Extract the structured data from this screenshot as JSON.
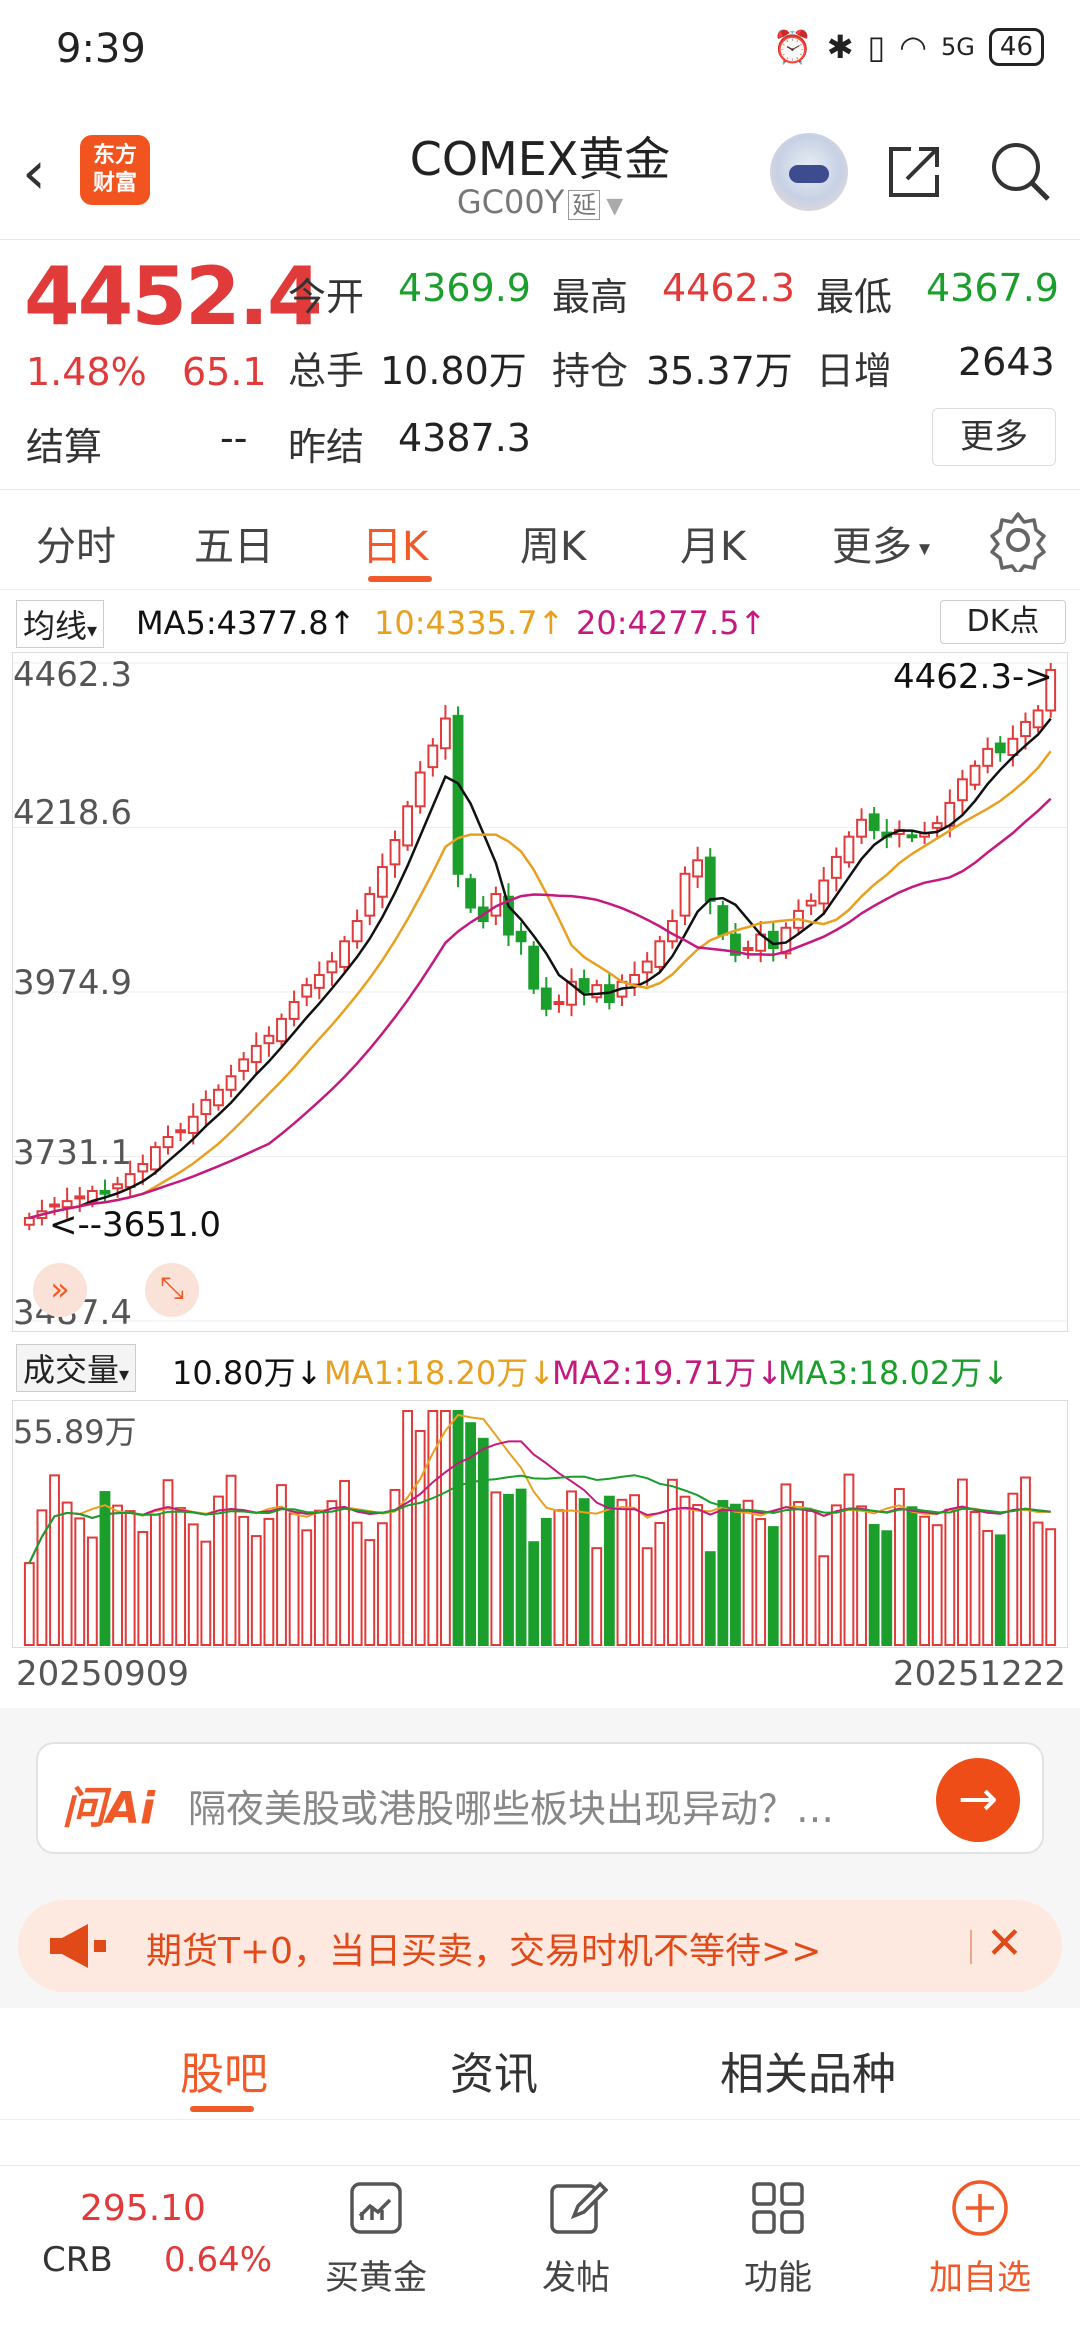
{
  "status_bar": {
    "time": "9:39",
    "signal": "5G",
    "battery": "46"
  },
  "header": {
    "title": "COMEX黄金",
    "code": "GC00Y",
    "tag": "延",
    "logo_text": "东方财富",
    "icons": [
      "back-arrow-icon",
      "logo-icon",
      "robot-assistant-icon",
      "share-icon",
      "search-icon"
    ]
  },
  "quote": {
    "price": "4452.4",
    "change_pct": "1.48%",
    "change": "65.1",
    "open_label": "今开",
    "open": "4369.9",
    "high_label": "最高",
    "high": "4462.3",
    "low_label": "最低",
    "low": "4367.9",
    "volume_label": "总手",
    "volume": "10.80万",
    "oi_label": "持仓",
    "oi": "35.37万",
    "oi_chg_label": "日增",
    "oi_chg": "2643",
    "settle_label": "结算",
    "settle": "--",
    "prev_settle_label": "昨结",
    "prev_settle": "4387.3",
    "more": "更多"
  },
  "period_tabs": {
    "items": [
      "分时",
      "五日",
      "日K",
      "周K",
      "月K",
      "更多"
    ],
    "active": "日K"
  },
  "ma_legend": {
    "mode": "均线",
    "ma5": "MA5:4377.8↑",
    "ma10": "10:4335.7↑",
    "ma20": "20:4277.5↑",
    "dk": "DK点"
  },
  "price_axis": {
    "labels": [
      "4462.3",
      "4218.6",
      "3974.9",
      "3731.1",
      "3487.4"
    ],
    "max_marker": "4462.3->",
    "min_marker": "<--3651.0"
  },
  "volume_legend": {
    "mode": "成交量",
    "vol": "10.80万↓",
    "ma1": "MA1:18.20万↓",
    "ma2": "MA2:19.71万↓",
    "ma3": "MA3:18.02万↓",
    "max_label": "55.89万"
  },
  "dates": {
    "start": "20250909",
    "end": "20251222"
  },
  "ask": {
    "logo": "问Ai",
    "placeholder": "隔夜美股或港股哪些板块出现异动？…"
  },
  "promo": {
    "text": "期货T+0，当日买卖，交易时机不等待>>"
  },
  "bottom_tabs": {
    "items": [
      "股吧",
      "资讯",
      "相关品种"
    ]
  },
  "bottom_bar": {
    "crb_value": "295.10",
    "crb_label": "CRB",
    "crb_pct": "0.64%",
    "nav": [
      {
        "label": "买黄金",
        "icon": "chart-icon"
      },
      {
        "label": "发帖",
        "icon": "edit-icon"
      },
      {
        "label": "功能",
        "icon": "grid-icon"
      },
      {
        "label": "加自选",
        "icon": "add-icon"
      }
    ]
  },
  "colors": {
    "up": "#e03a3a",
    "down": "#1b9e2c",
    "accent": "#ef5a28",
    "ma5": "#111111",
    "ma10": "#e8a020",
    "ma20": "#c4197f"
  },
  "chart_data": {
    "type": "candlestick",
    "ylim": [
      3487.4,
      4462.3
    ],
    "y_ticks": [
      4462.3,
      4218.6,
      3974.9,
      3731.1,
      3487.4
    ],
    "x_range": [
      "20250909",
      "20251222"
    ],
    "max": 4462.3,
    "min": 3651.0,
    "closes": [
      3640,
      3650,
      3660,
      3665,
      3672,
      3680,
      3676,
      3690,
      3705,
      3720,
      3745,
      3760,
      3770,
      3790,
      3815,
      3830,
      3850,
      3875,
      3895,
      3910,
      3935,
      3960,
      3985,
      4000,
      4020,
      4050,
      4080,
      4120,
      4160,
      4200,
      4250,
      4300,
      4340,
      4380,
      4150,
      4100,
      4080,
      4120,
      4060,
      4050,
      3980,
      3950,
      3960,
      3990,
      3975,
      3985,
      3960,
      3990,
      4000,
      4020,
      4050,
      4080,
      4150,
      4170,
      4110,
      4060,
      4030,
      4040,
      4060,
      4040,
      4070,
      4095,
      4110,
      4140,
      4175,
      4205,
      4230,
      4215,
      4205,
      4215,
      4205,
      4210,
      4225,
      4255,
      4290,
      4310,
      4335,
      4330,
      4350,
      4375,
      4392,
      4452
    ]
  }
}
